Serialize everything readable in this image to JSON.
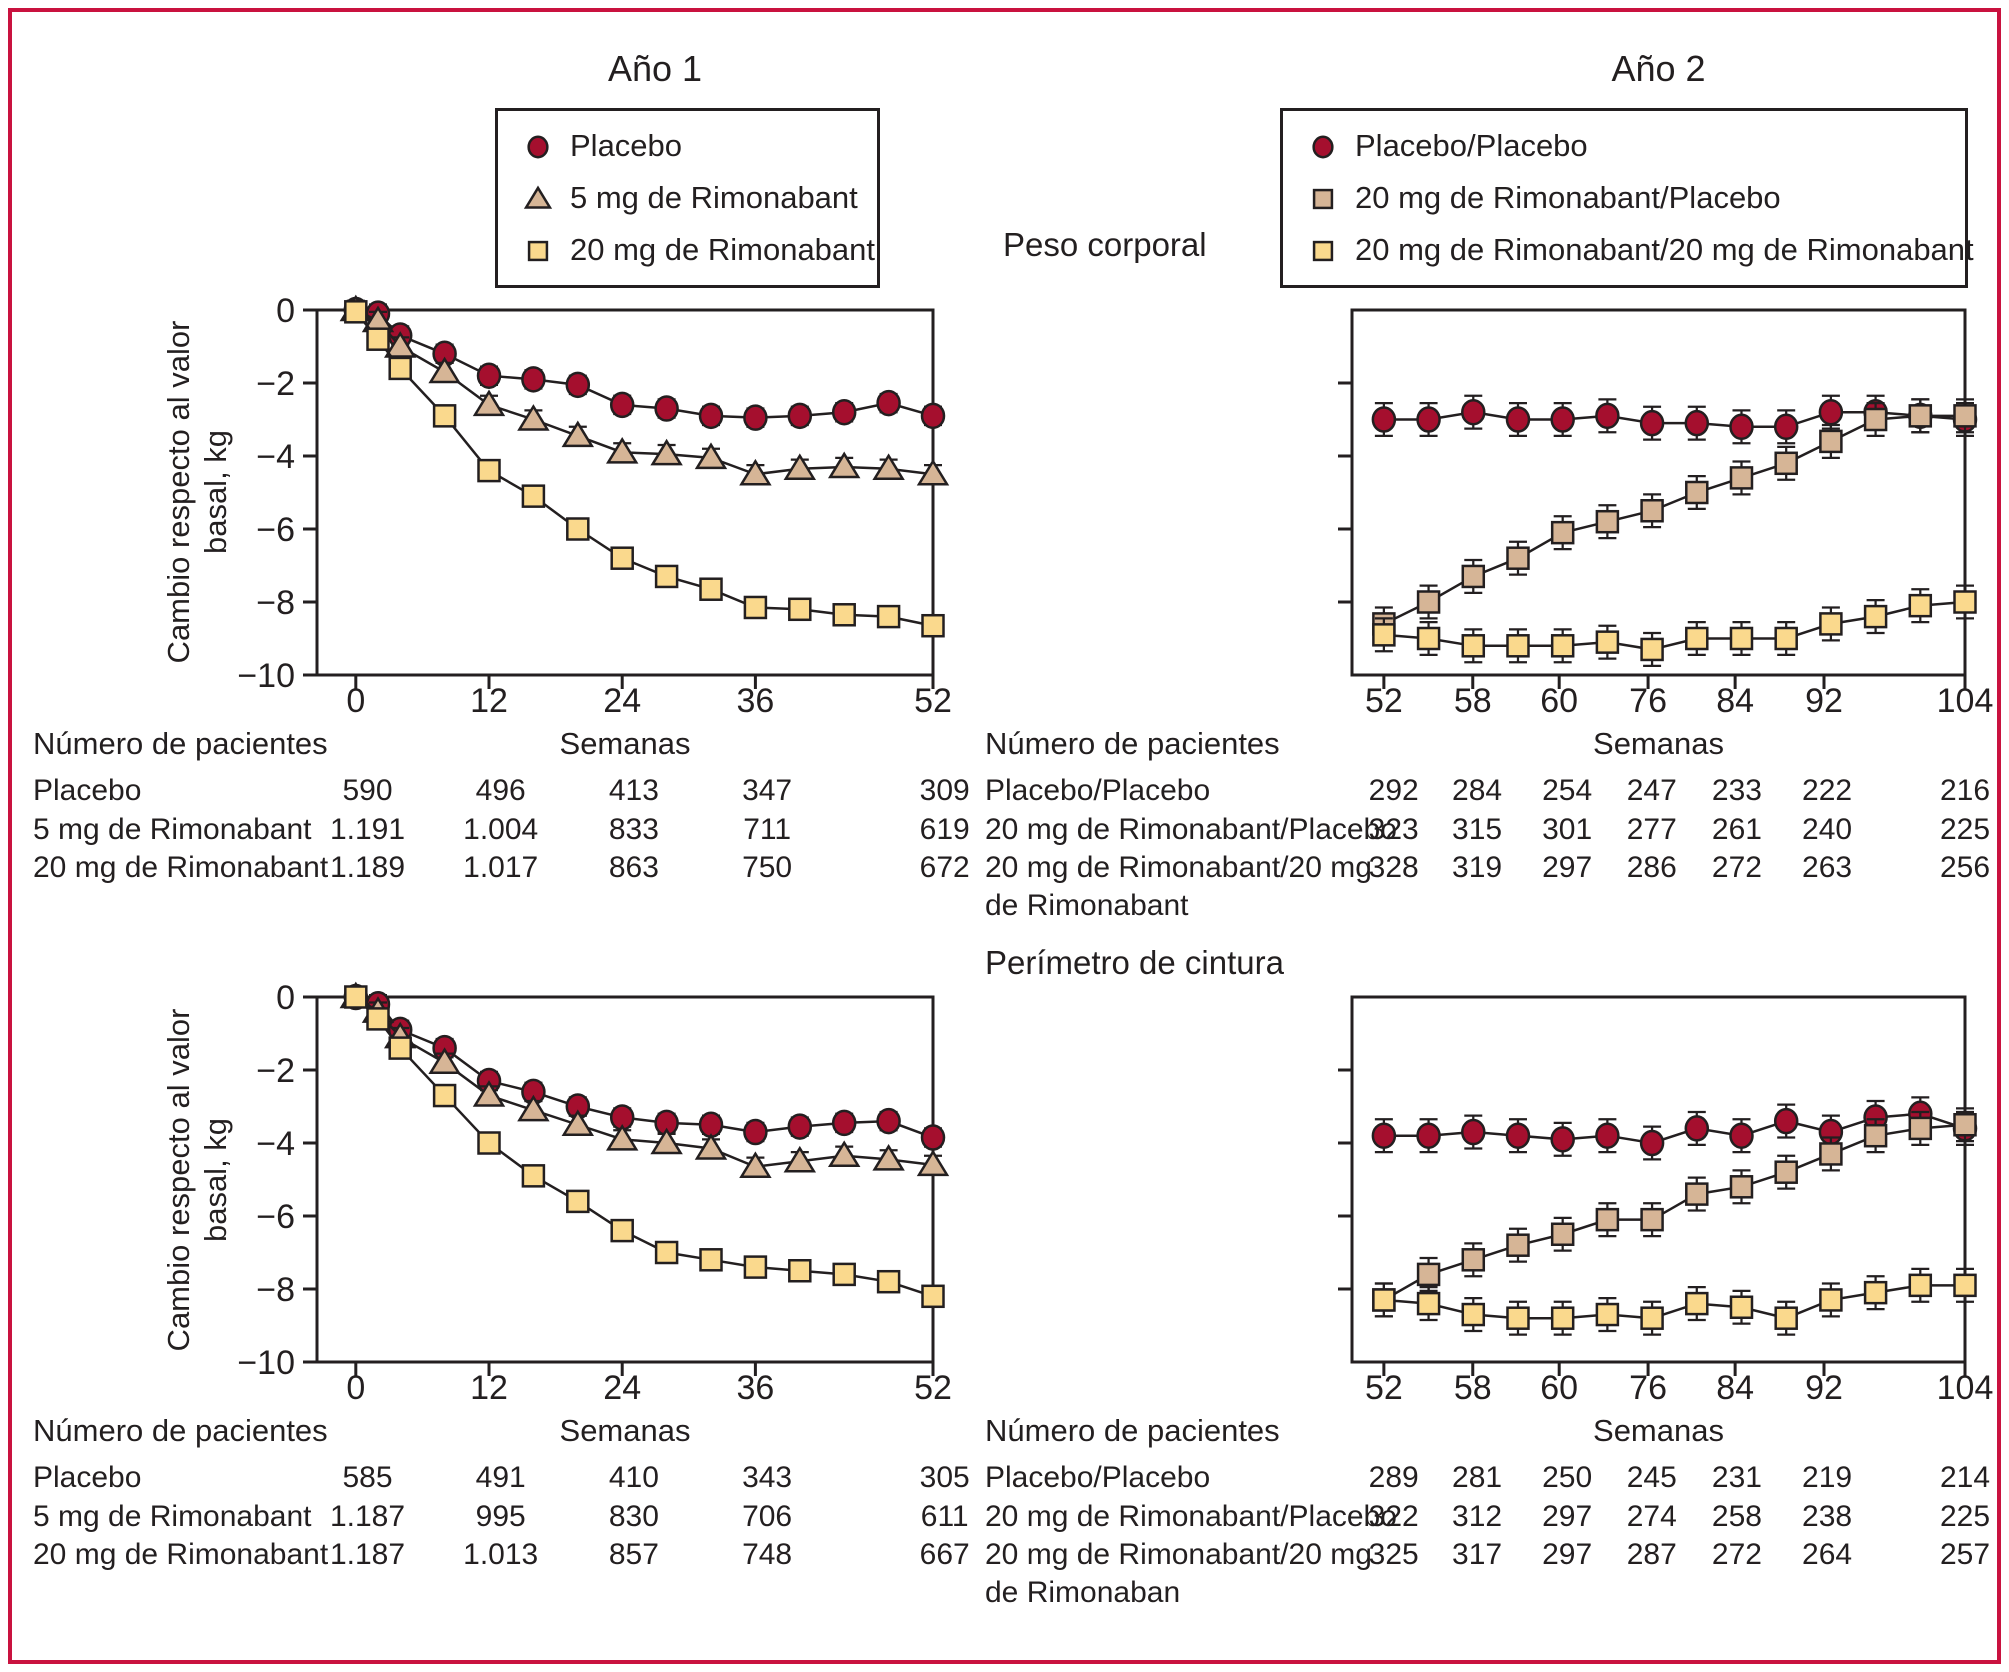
{
  "figure": {
    "border_color": "#c9123f",
    "background": "#ffffff",
    "text_color": "#231f20",
    "line_color": "#231f20",
    "col_titles": [
      "Año 1",
      "Año 2"
    ],
    "row_titles": [
      "Peso corporal",
      "Perímetro de cintura"
    ],
    "patients_header": "Número de pacientes",
    "xlabel": "Semanas",
    "ylabel_lines": [
      "Cambio respecto al valor",
      "basal, kg"
    ]
  },
  "legends": [
    {
      "items": [
        {
          "label": "Placebo",
          "marker": "circle",
          "color": "#a50f2e"
        },
        {
          "label": "5 mg de Rimonabant",
          "marker": "triangle",
          "color": "#d6b596"
        },
        {
          "label": "20 mg de Rimonabant",
          "marker": "square",
          "color": "#fad98d"
        }
      ]
    },
    {
      "items": [
        {
          "label": "Placebo/Placebo",
          "marker": "circle",
          "color": "#a50f2e"
        },
        {
          "label": "20 mg de Rimonabant/Placebo",
          "marker": "square",
          "color": "#d6b596"
        },
        {
          "label": "20 mg de Rimonabant/20 mg de Rimonabant",
          "marker": "square",
          "color": "#fad98d"
        }
      ]
    }
  ],
  "chart_data": [
    {
      "id": "peso-ano1",
      "type": "line",
      "measure": "Peso corporal",
      "period": "Año 1",
      "xlabel": "Semanas",
      "ylabel": "Cambio respecto al valor basal, kg",
      "ylim": [
        -10,
        0
      ],
      "yticks": [
        0,
        -2,
        -4,
        -6,
        -8,
        -10
      ],
      "ytick_labels": [
        "0",
        "−2",
        "−4",
        "−6",
        "−8",
        "−10"
      ],
      "x_weeks": [
        0,
        2,
        4,
        8,
        12,
        16,
        20,
        24,
        28,
        32,
        36,
        40,
        44,
        48,
        52
      ],
      "xticks": [
        0,
        12,
        24,
        36,
        52
      ],
      "xtick_labels": [
        "0",
        "12",
        "24",
        "36",
        "52"
      ],
      "series": [
        {
          "name": "Placebo",
          "marker": "circle",
          "color": "#a50f2e",
          "err": 0.25,
          "values": [
            0,
            -0.1,
            -0.7,
            -1.2,
            -1.8,
            -1.9,
            -2.05,
            -2.6,
            -2.7,
            -2.9,
            -2.95,
            -2.9,
            -2.8,
            -2.55,
            -2.9
          ]
        },
        {
          "name": "5 mg de Rimonabant",
          "marker": "triangle",
          "color": "#d6b596",
          "err": 0.25,
          "values": [
            0,
            -0.3,
            -1.0,
            -1.7,
            -2.6,
            -3.0,
            -3.45,
            -3.9,
            -3.95,
            -4.05,
            -4.5,
            -4.35,
            -4.3,
            -4.35,
            -4.5
          ]
        },
        {
          "name": "20 mg de Rimonabant",
          "marker": "square",
          "color": "#fad98d",
          "err": 0,
          "values": [
            -0.05,
            -0.8,
            -1.6,
            -2.9,
            -4.4,
            -5.1,
            -6.0,
            -6.8,
            -7.3,
            -7.65,
            -8.15,
            -8.2,
            -8.35,
            -8.4,
            -8.65
          ]
        }
      ],
      "patients": {
        "header": "Número de pacientes",
        "rows": [
          {
            "label": "Placebo",
            "counts": [
              "590",
              "496",
              "413",
              "347",
              "309"
            ]
          },
          {
            "label": "5 mg de Rimonabant",
            "counts": [
              "1.191",
              "1.004",
              "833",
              "711",
              "619"
            ]
          },
          {
            "label": "20 mg de Rimonabant",
            "counts": [
              "1.189",
              "1.017",
              "863",
              "750",
              "672"
            ]
          }
        ],
        "extra_line": ""
      }
    },
    {
      "id": "peso-ano2",
      "type": "line",
      "measure": "Peso corporal",
      "period": "Año 2",
      "xlabel": "Semanas",
      "ylabel": "",
      "ylim": [
        -10,
        0
      ],
      "yticks": [
        -2,
        -4,
        -6,
        -8
      ],
      "ytick_labels": null,
      "x_weeks": [
        52,
        56,
        60,
        64,
        68,
        72,
        76,
        80,
        84,
        88,
        92,
        96,
        100,
        104
      ],
      "xticks": [
        52,
        58,
        60,
        76,
        84,
        92,
        104
      ],
      "xtick_labels": [
        "52",
        "58",
        "60",
        "76",
        "84",
        "92",
        "104"
      ],
      "series": [
        {
          "name": "Placebo/Placebo",
          "marker": "circle",
          "color": "#a50f2e",
          "err": 0.45,
          "values": [
            -3.0,
            -3.0,
            -2.8,
            -3.0,
            -3.0,
            -2.9,
            -3.1,
            -3.1,
            -3.2,
            -3.2,
            -2.8,
            -2.8,
            -2.9,
            -3.0
          ]
        },
        {
          "name": "20 mg de Rimonabant/Placebo",
          "marker": "square",
          "color": "#d6b596",
          "err": 0.45,
          "values": [
            -8.6,
            -8.0,
            -7.3,
            -6.8,
            -6.1,
            -5.8,
            -5.5,
            -5.0,
            -4.6,
            -4.2,
            -3.6,
            -3.0,
            -2.9,
            -2.9
          ]
        },
        {
          "name": "20 mg de Rimonabant/20 mg de Rimonabant",
          "marker": "square",
          "color": "#fad98d",
          "err": 0.45,
          "values": [
            -8.9,
            -9.0,
            -9.2,
            -9.2,
            -9.2,
            -9.1,
            -9.3,
            -9.0,
            -9.0,
            -9.0,
            -8.6,
            -8.4,
            -8.1,
            -8.0
          ]
        }
      ],
      "patients": {
        "header": "Número de pacientes",
        "rows": [
          {
            "label": "Placebo/Placebo",
            "counts": [
              "292",
              "284",
              "254",
              "247",
              "233",
              "222",
              "216"
            ]
          },
          {
            "label": "20 mg de Rimonabant/Placebo",
            "counts": [
              "323",
              "315",
              "301",
              "277",
              "261",
              "240",
              "225"
            ]
          },
          {
            "label": "20 mg de Rimonabant/20 mg",
            "counts": [
              "328",
              "319",
              "297",
              "286",
              "272",
              "263",
              "256"
            ]
          }
        ],
        "extra_line": "de Rimonabant"
      }
    },
    {
      "id": "cintura-ano1",
      "type": "line",
      "measure": "Perímetro de cintura",
      "period": "Año 1",
      "xlabel": "Semanas",
      "ylabel": "Cambio respecto al valor basal, kg",
      "ylim": [
        -10,
        0
      ],
      "yticks": [
        0,
        -2,
        -4,
        -6,
        -8,
        -10
      ],
      "ytick_labels": [
        "0",
        "−2",
        "−4",
        "−6",
        "−8",
        "−10"
      ],
      "x_weeks": [
        0,
        2,
        4,
        8,
        12,
        16,
        20,
        24,
        28,
        32,
        36,
        40,
        44,
        48,
        52
      ],
      "xticks": [
        0,
        12,
        24,
        36,
        52
      ],
      "xtick_labels": [
        "0",
        "12",
        "24",
        "36",
        "52"
      ],
      "series": [
        {
          "name": "Placebo",
          "marker": "circle",
          "color": "#a50f2e",
          "err": 0.25,
          "values": [
            0,
            -0.2,
            -0.9,
            -1.4,
            -2.3,
            -2.6,
            -3.0,
            -3.3,
            -3.45,
            -3.5,
            -3.7,
            -3.55,
            -3.45,
            -3.4,
            -3.85
          ]
        },
        {
          "name": "5 mg de Rimonabant",
          "marker": "triangle",
          "color": "#d6b596",
          "err": 0.25,
          "values": [
            0,
            -0.4,
            -1.1,
            -1.8,
            -2.7,
            -3.1,
            -3.5,
            -3.9,
            -4.0,
            -4.15,
            -4.65,
            -4.5,
            -4.35,
            -4.45,
            -4.6
          ]
        },
        {
          "name": "20 mg de Rimonabant",
          "marker": "square",
          "color": "#fad98d",
          "err": 0,
          "values": [
            0,
            -0.6,
            -1.4,
            -2.7,
            -4.0,
            -4.9,
            -5.6,
            -6.4,
            -7.0,
            -7.2,
            -7.4,
            -7.5,
            -7.6,
            -7.8,
            -8.2
          ]
        }
      ],
      "patients": {
        "header": "Número de pacientes",
        "rows": [
          {
            "label": "Placebo",
            "counts": [
              "585",
              "491",
              "410",
              "343",
              "305"
            ]
          },
          {
            "label": "5 mg de Rimonabant",
            "counts": [
              "1.187",
              "995",
              "830",
              "706",
              "611"
            ]
          },
          {
            "label": "20 mg de Rimonabant",
            "counts": [
              "1.187",
              "1.013",
              "857",
              "748",
              "667"
            ]
          }
        ],
        "extra_line": ""
      }
    },
    {
      "id": "cintura-ano2",
      "type": "line",
      "measure": "Perímetro de cintura",
      "period": "Año 2",
      "xlabel": "Semanas",
      "ylabel": "",
      "ylim": [
        -10,
        0
      ],
      "yticks": [
        -2,
        -4,
        -6,
        -8
      ],
      "ytick_labels": null,
      "x_weeks": [
        52,
        56,
        60,
        64,
        68,
        72,
        76,
        80,
        84,
        88,
        92,
        96,
        100,
        104
      ],
      "xticks": [
        52,
        58,
        60,
        76,
        84,
        92,
        104
      ],
      "xtick_labels": [
        "52",
        "58",
        "60",
        "76",
        "84",
        "92",
        "104"
      ],
      "series": [
        {
          "name": "Placebo/Placebo",
          "marker": "circle",
          "color": "#a50f2e",
          "err": 0.45,
          "values": [
            -3.8,
            -3.8,
            -3.7,
            -3.8,
            -3.9,
            -3.8,
            -4.0,
            -3.6,
            -3.8,
            -3.4,
            -3.7,
            -3.3,
            -3.2,
            -3.6
          ]
        },
        {
          "name": "20 mg de Rimonabant/Placebo",
          "marker": "square",
          "color": "#d6b596",
          "err": 0.45,
          "values": [
            -8.3,
            -7.6,
            -7.2,
            -6.8,
            -6.5,
            -6.1,
            -6.1,
            -5.4,
            -5.2,
            -4.8,
            -4.3,
            -3.8,
            -3.6,
            -3.5
          ]
        },
        {
          "name": "20 mg de Rimonabant/20 mg de Rimonabant",
          "marker": "square",
          "color": "#fad98d",
          "err": 0.45,
          "values": [
            -8.3,
            -8.4,
            -8.7,
            -8.8,
            -8.8,
            -8.7,
            -8.8,
            -8.4,
            -8.5,
            -8.8,
            -8.3,
            -8.1,
            -7.9,
            -7.9
          ]
        }
      ],
      "patients": {
        "header": "Número de pacientes",
        "rows": [
          {
            "label": "Placebo/Placebo",
            "counts": [
              "289",
              "281",
              "250",
              "245",
              "231",
              "219",
              "214"
            ]
          },
          {
            "label": "20 mg de Rimonabant/Placebo",
            "counts": [
              "322",
              "312",
              "297",
              "274",
              "258",
              "238",
              "225"
            ]
          },
          {
            "label": "20 mg de Rimonabant/20 mg",
            "counts": [
              "325",
              "317",
              "297",
              "287",
              "272",
              "264",
              "257"
            ]
          }
        ],
        "extra_line": "de Rimonaban"
      }
    }
  ]
}
